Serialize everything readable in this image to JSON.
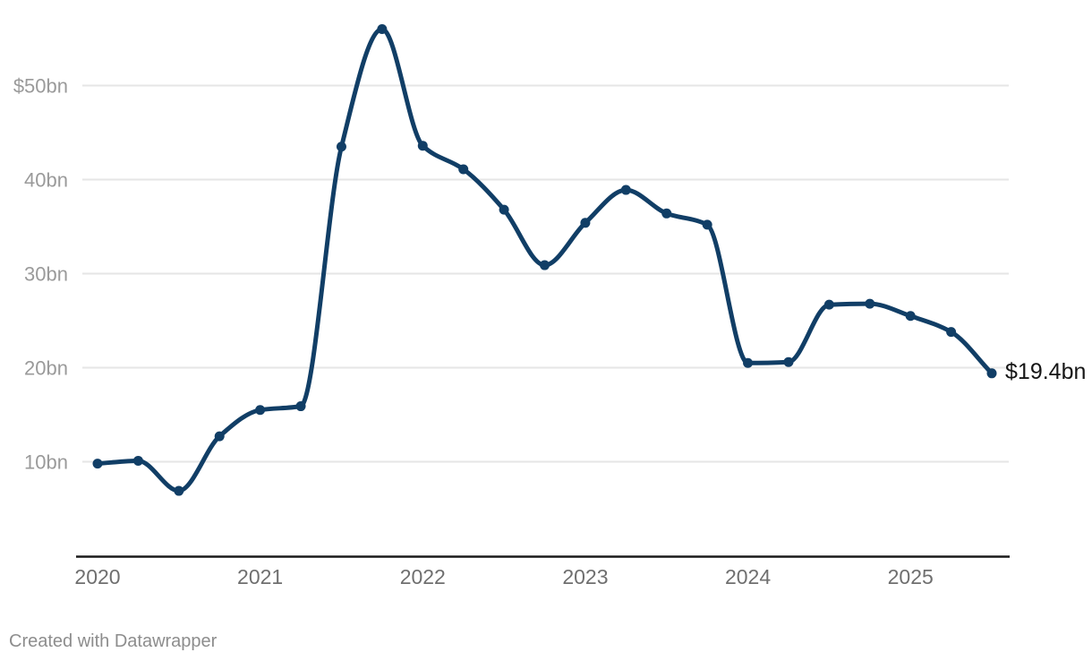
{
  "chart_data": {
    "type": "line",
    "title": "",
    "unit": "$bn",
    "x": [
      "2020 Q1",
      "2020 Q2",
      "2020 Q3",
      "2020 Q4",
      "2021 Q1",
      "2021 Q2",
      "2021 Q3",
      "2021 Q4",
      "2022 Q1",
      "2022 Q2",
      "2022 Q3",
      "2022 Q4",
      "2023 Q1",
      "2023 Q2",
      "2023 Q3",
      "2023 Q4",
      "2024 Q1",
      "2024 Q2",
      "2024 Q3",
      "2024 Q4",
      "2025 Q1",
      "2025 Q2",
      "2025 Q3"
    ],
    "values": [
      9.8,
      10.1,
      6.9,
      12.7,
      15.5,
      15.9,
      43.5,
      56.0,
      43.6,
      41.1,
      36.8,
      30.9,
      35.4,
      38.9,
      36.4,
      35.2,
      20.5,
      20.6,
      26.7,
      26.8,
      25.5,
      23.8,
      19.4
    ],
    "ylim": [
      0,
      59
    ],
    "grid": "horizontal",
    "legend": "none",
    "curve": "smooth-monotone",
    "y_ticks": [
      {
        "value": 50,
        "label": "$50bn"
      },
      {
        "value": 40,
        "label": "40bn"
      },
      {
        "value": 30,
        "label": "30bn"
      },
      {
        "value": 20,
        "label": "20bn"
      },
      {
        "value": 10,
        "label": "10bn"
      }
    ],
    "x_ticks": [
      {
        "index": 0,
        "label": "2020"
      },
      {
        "index": 4,
        "label": "2021"
      },
      {
        "index": 8,
        "label": "2022"
      },
      {
        "index": 12,
        "label": "2023"
      },
      {
        "index": 16,
        "label": "2024"
      },
      {
        "index": 20,
        "label": "2025"
      }
    ],
    "end_label": "$19.4bn",
    "colors": {
      "line": "#113e66",
      "point": "#113e66",
      "grid": "#e6e6e6",
      "axis": "#1a1a1a",
      "x_tick_label": "#6f6f6f",
      "y_tick_label": "#9a9a9a",
      "end_label": "#161616"
    }
  },
  "footer": {
    "attribution": "Created with Datawrapper"
  }
}
